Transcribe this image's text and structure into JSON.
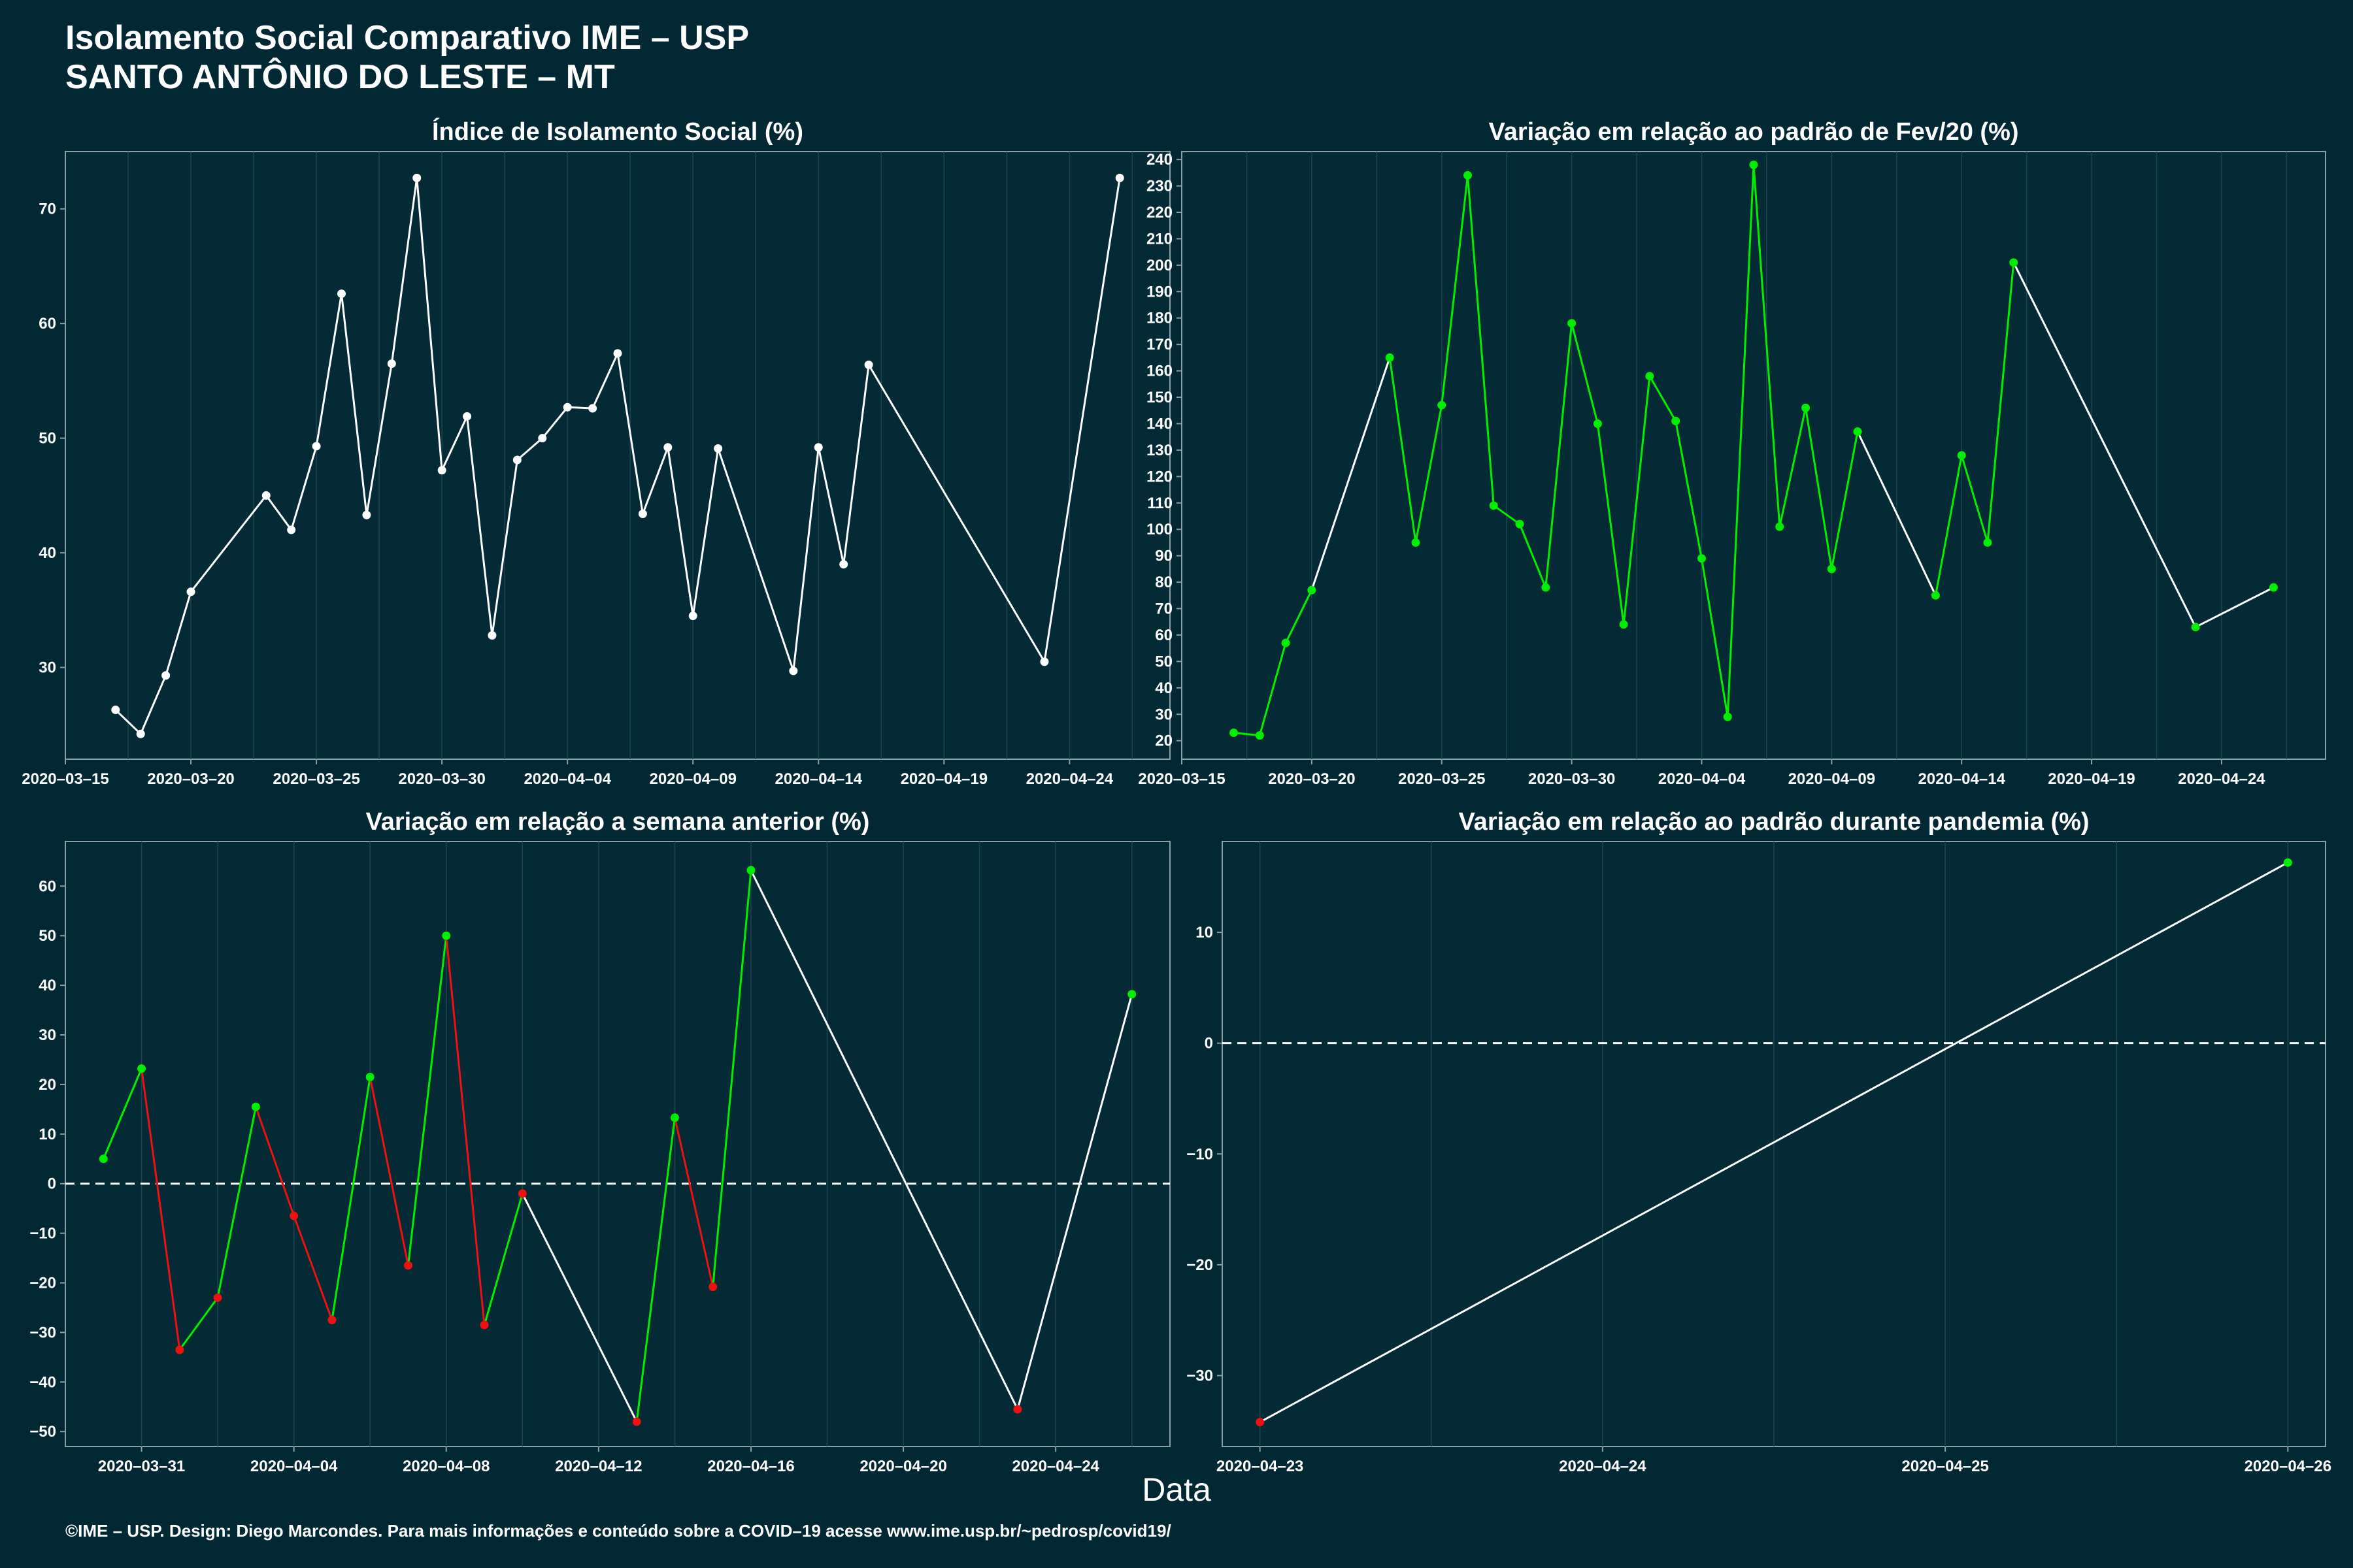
{
  "header": {
    "title": "Isolamento Social Comparativo IME – USP",
    "subtitle": "SANTO ANTÔNIO DO LESTE – MT"
  },
  "x_axis_label": "Data",
  "footer": "©IME – USP. Design: Diego Marcondes. Para mais informações e conteúdo sobre a COVID–19 acesse www.ime.usp.br/~pedrosp/covid19/",
  "colors": {
    "background": "#022833",
    "panel": "#032a35",
    "grid": "#1e4550",
    "line": "#ffffff",
    "positive": "#00ee00",
    "negative": "#ee1111"
  },
  "chart_data": [
    {
      "id": "isolamento",
      "type": "line",
      "title": "Índice de Isolamento Social (%)",
      "xlabel": "Data",
      "ylabel": "",
      "x_type": "date",
      "xlim": [
        "2020-03-15",
        "2020-04-28"
      ],
      "ylim": [
        22,
        75
      ],
      "yticks": [
        30,
        40,
        50,
        60,
        70
      ],
      "xticks": [
        "2020-03-15",
        "2020-03-20",
        "2020-03-25",
        "2020-03-30",
        "2020-04-04",
        "2020-04-09",
        "2020-04-14",
        "2020-04-19",
        "2020-04-24"
      ],
      "grid": true,
      "zero_line": false,
      "point_color": "white",
      "series": [
        {
          "x": [
            "2020-03-17",
            "2020-03-18",
            "2020-03-19",
            "2020-03-20",
            "2020-03-23",
            "2020-03-24",
            "2020-03-25",
            "2020-03-26",
            "2020-03-27",
            "2020-03-28",
            "2020-03-29",
            "2020-03-30",
            "2020-03-31",
            "2020-04-01",
            "2020-04-02",
            "2020-04-03",
            "2020-04-04",
            "2020-04-05",
            "2020-04-06",
            "2020-04-07",
            "2020-04-08",
            "2020-04-09",
            "2020-04-10",
            "2020-04-13",
            "2020-04-14",
            "2020-04-15",
            "2020-04-16",
            "2020-04-23",
            "2020-04-26"
          ],
          "y": [
            26.3,
            24.2,
            29.3,
            36.6,
            45.0,
            42.0,
            49.3,
            62.6,
            43.3,
            56.5,
            72.7,
            47.2,
            51.9,
            32.8,
            48.1,
            50.0,
            52.7,
            52.6,
            57.4,
            43.4,
            49.2,
            34.5,
            49.1,
            29.7,
            49.2,
            39.0,
            56.4,
            30.5,
            72.7
          ]
        }
      ]
    },
    {
      "id": "variacao-fev",
      "type": "line",
      "title": "Variação em relação ao padrão de Fev/20 (%)",
      "xlabel": "Data",
      "ylabel": "",
      "x_type": "date",
      "xlim": [
        "2020-03-15",
        "2020-04-28"
      ],
      "ylim": [
        13,
        243
      ],
      "yticks": [
        20,
        30,
        40,
        50,
        60,
        70,
        80,
        90,
        100,
        110,
        120,
        130,
        140,
        150,
        160,
        170,
        180,
        190,
        200,
        210,
        220,
        230,
        240
      ],
      "xticks": [
        "2020-03-15",
        "2020-03-20",
        "2020-03-25",
        "2020-03-30",
        "2020-04-04",
        "2020-04-09",
        "2020-04-14",
        "2020-04-19",
        "2020-04-24"
      ],
      "grid": true,
      "zero_line": false,
      "point_color": "green",
      "series": [
        {
          "x": [
            "2020-03-17",
            "2020-03-18",
            "2020-03-19",
            "2020-03-20",
            "2020-03-23",
            "2020-03-24",
            "2020-03-25",
            "2020-03-26",
            "2020-03-27",
            "2020-03-28",
            "2020-03-29",
            "2020-03-30",
            "2020-03-31",
            "2020-04-01",
            "2020-04-02",
            "2020-04-03",
            "2020-04-04",
            "2020-04-05",
            "2020-04-06",
            "2020-04-07",
            "2020-04-08",
            "2020-04-09",
            "2020-04-10",
            "2020-04-13",
            "2020-04-14",
            "2020-04-15",
            "2020-04-16",
            "2020-04-23",
            "2020-04-26"
          ],
          "y": [
            23,
            22,
            57,
            77,
            165,
            95,
            147,
            234,
            109,
            102,
            78,
            178,
            140,
            64,
            158,
            141,
            89,
            29,
            238,
            101,
            146,
            85,
            137,
            75,
            128,
            95,
            201,
            63,
            78
          ]
        }
      ]
    },
    {
      "id": "variacao-semana",
      "type": "line",
      "title": "Variação em relação a semana anterior (%)",
      "xlabel": "Data",
      "ylabel": "",
      "x_type": "date",
      "xlim": [
        "2020-03-29",
        "2020-04-27"
      ],
      "ylim": [
        -53,
        69
      ],
      "yticks": [
        -50,
        -40,
        -30,
        -20,
        -10,
        0,
        10,
        20,
        30,
        40,
        50,
        60
      ],
      "xticks": [
        "2020-03-31",
        "2020-04-04",
        "2020-04-08",
        "2020-04-12",
        "2020-04-16",
        "2020-04-20",
        "2020-04-24"
      ],
      "grid": true,
      "zero_line": true,
      "point_color": "sign",
      "series": [
        {
          "x": [
            "2020-03-30",
            "2020-03-31",
            "2020-04-01",
            "2020-04-02",
            "2020-04-03",
            "2020-04-04",
            "2020-04-05",
            "2020-04-06",
            "2020-04-07",
            "2020-04-08",
            "2020-04-09",
            "2020-04-10",
            "2020-04-13",
            "2020-04-14",
            "2020-04-15",
            "2020-04-16",
            "2020-04-23",
            "2020-04-26"
          ],
          "y": [
            5,
            23.2,
            -33.5,
            -23,
            15.5,
            -6.5,
            -27.5,
            21.5,
            -16.5,
            50,
            -28.5,
            -2,
            -48,
            13.3,
            -20.8,
            63.2,
            -45.5,
            38.2
          ]
        }
      ]
    },
    {
      "id": "variacao-pandemia",
      "type": "line",
      "title": "Variação em relação ao padrão durante pandemia (%)",
      "xlabel": "Data",
      "ylabel": "",
      "x_type": "date",
      "xlim": [
        "2020-04-22.89",
        "2020-04-26.11"
      ],
      "ylim": [
        -36.4,
        18.2
      ],
      "yticks": [
        -30,
        -20,
        -10,
        0,
        10
      ],
      "xticks": [
        "2020-04-23",
        "2020-04-24",
        "2020-04-25",
        "2020-04-26"
      ],
      "grid": true,
      "zero_line": true,
      "point_color": "sign",
      "series": [
        {
          "x": [
            "2020-04-23",
            "2020-04-26"
          ],
          "y": [
            -34.2,
            16.3
          ]
        }
      ]
    }
  ]
}
